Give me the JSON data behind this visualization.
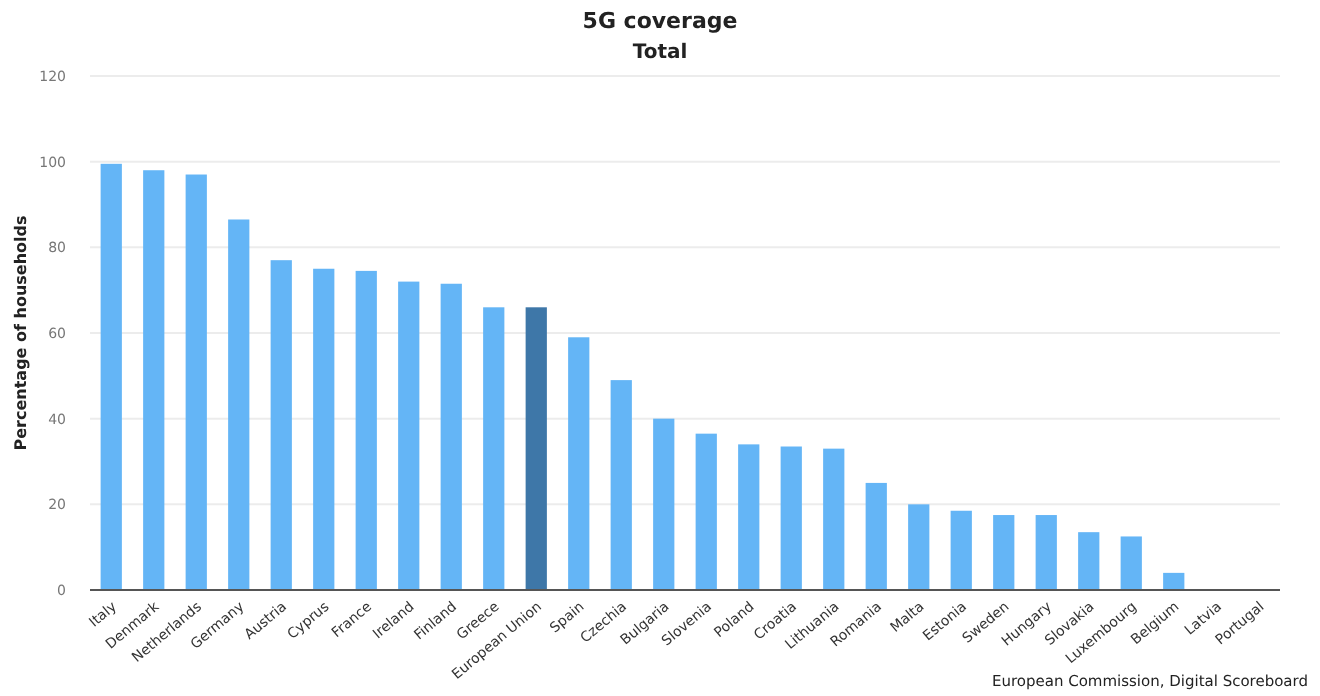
{
  "chart_data": {
    "type": "bar",
    "title": "5G coverage",
    "subtitle": "Total",
    "ylabel": "Percentage of households",
    "categories": [
      "Italy",
      "Denmark",
      "Netherlands",
      "Germany",
      "Austria",
      "Cyprus",
      "France",
      "Ireland",
      "Finland",
      "Greece",
      "European Union",
      "Spain",
      "Czechia",
      "Bulgaria",
      "Slovenia",
      "Poland",
      "Croatia",
      "Lithuania",
      "Romania",
      "Malta",
      "Estonia",
      "Sweden",
      "Hungary",
      "Slovakia",
      "Luxembourg",
      "Belgium",
      "Latvia",
      "Portugal"
    ],
    "values": [
      99.5,
      98,
      97,
      86.5,
      77,
      75,
      74.5,
      72,
      71.5,
      66,
      66,
      59,
      49,
      40,
      36.5,
      34,
      33.5,
      33,
      25,
      20,
      18.5,
      17.5,
      17.5,
      13.5,
      12.5,
      4,
      0,
      0
    ],
    "colors": [
      "#64b5f6",
      "#64b5f6",
      "#64b5f6",
      "#64b5f6",
      "#64b5f6",
      "#64b5f6",
      "#64b5f6",
      "#64b5f6",
      "#64b5f6",
      "#64b5f6",
      "#3e77a8",
      "#64b5f6",
      "#64b5f6",
      "#64b5f6",
      "#64b5f6",
      "#64b5f6",
      "#64b5f6",
      "#64b5f6",
      "#64b5f6",
      "#64b5f6",
      "#64b5f6",
      "#64b5f6",
      "#64b5f6",
      "#64b5f6",
      "#64b5f6",
      "#64b5f6",
      "#64b5f6",
      "#64b5f6"
    ],
    "ylim": [
      0,
      120
    ],
    "yticks": [
      0,
      20,
      40,
      60,
      80,
      100,
      120
    ],
    "grid": "y",
    "annotations": [
      "European Commission, Digital Scoreboard"
    ]
  }
}
